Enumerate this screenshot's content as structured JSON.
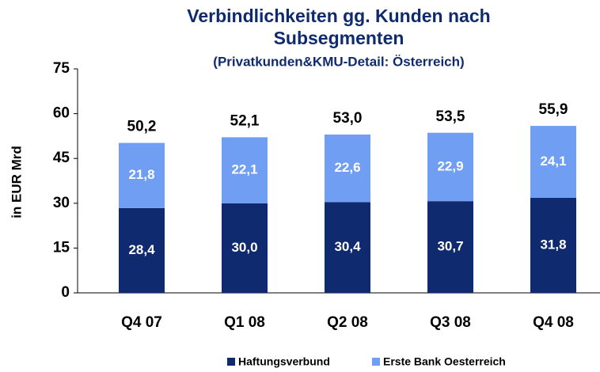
{
  "chart_data": {
    "type": "stacked_bar",
    "title": [
      "Verbindlichkeiten gg. Kunden nach",
      "Subsegmenten"
    ],
    "subtitle": "(Privatkunden&KMU-Detail: Österreich)",
    "ylabel": "in EUR Mrd",
    "categories": [
      "Q4 07",
      "Q1 08",
      "Q2 08",
      "Q3 08",
      "Q4 08"
    ],
    "series": [
      {
        "name": "Haftungsverbund",
        "color": "#0f2a6e",
        "values": [
          28.4,
          30.0,
          30.4,
          30.7,
          31.8
        ],
        "value_labels": [
          "28,4",
          "30,0",
          "30,4",
          "30,7",
          "31,8"
        ]
      },
      {
        "name": "Erste Bank Oesterreich",
        "color": "#6f9ef3",
        "values": [
          21.8,
          22.1,
          22.6,
          22.9,
          24.1
        ],
        "value_labels": [
          "21,8",
          "22,1",
          "22,6",
          "22,9",
          "24,1"
        ]
      }
    ],
    "totals": [
      50.2,
      52.1,
      53.0,
      53.5,
      55.9
    ],
    "total_labels": [
      "50,2",
      "52,1",
      "53,0",
      "53,5",
      "55,9"
    ],
    "ylim": [
      0,
      75
    ],
    "yticks": [
      0,
      15,
      30,
      45,
      60,
      75
    ],
    "legend": "bottom"
  }
}
